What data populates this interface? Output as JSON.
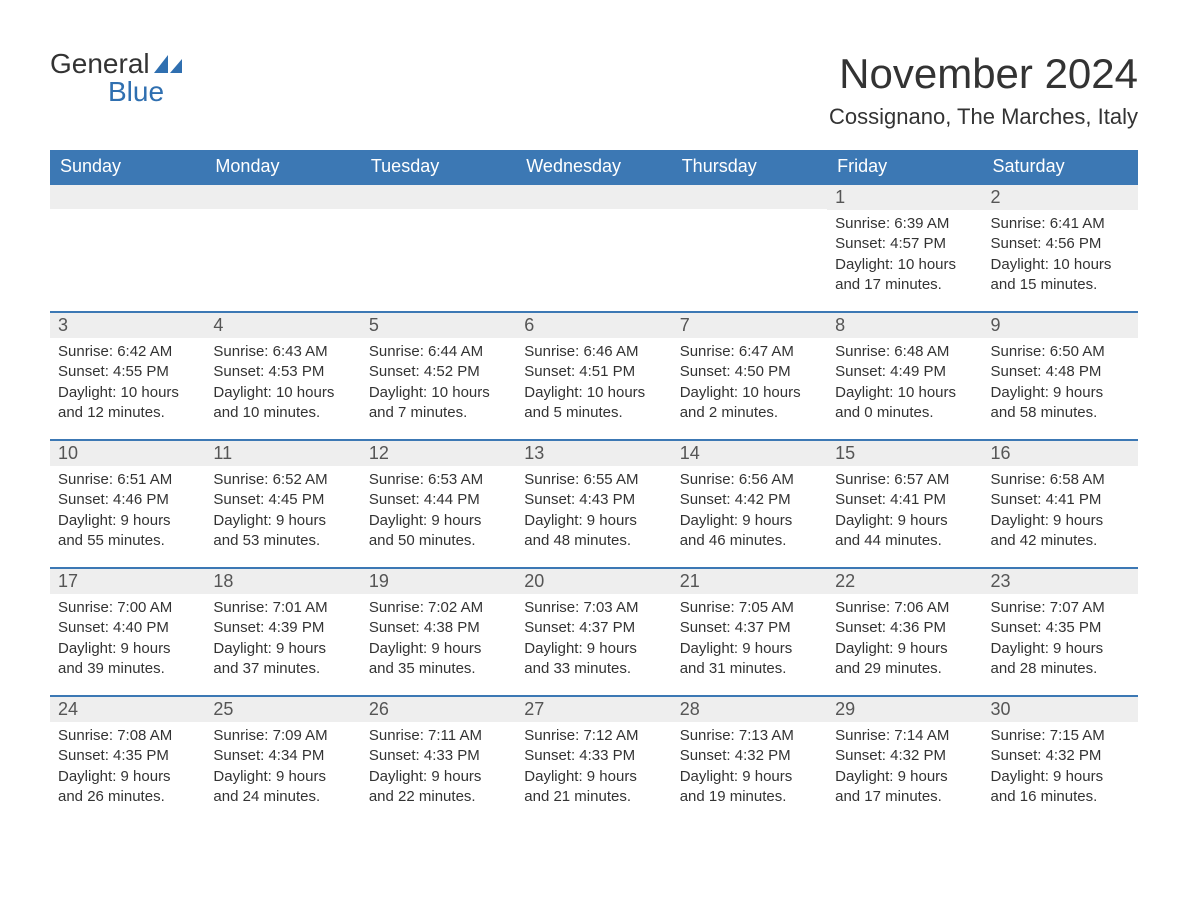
{
  "brand": {
    "line1": "General",
    "line2": "Blue",
    "accent_color": "#2f6fb0"
  },
  "title": "November 2024",
  "location": "Cossignano, The Marches, Italy",
  "colors": {
    "header_bg": "#3c78b4",
    "header_text": "#ffffff",
    "day_head_bg": "#eeeeee",
    "day_border": "#3c78b4",
    "body_text": "#333333",
    "page_bg": "#ffffff"
  },
  "weekdays": [
    "Sunday",
    "Monday",
    "Tuesday",
    "Wednesday",
    "Thursday",
    "Friday",
    "Saturday"
  ],
  "leading_blanks": 5,
  "days": [
    {
      "n": 1,
      "sunrise": "6:39 AM",
      "sunset": "4:57 PM",
      "daylight": "10 hours and 17 minutes."
    },
    {
      "n": 2,
      "sunrise": "6:41 AM",
      "sunset": "4:56 PM",
      "daylight": "10 hours and 15 minutes."
    },
    {
      "n": 3,
      "sunrise": "6:42 AM",
      "sunset": "4:55 PM",
      "daylight": "10 hours and 12 minutes."
    },
    {
      "n": 4,
      "sunrise": "6:43 AM",
      "sunset": "4:53 PM",
      "daylight": "10 hours and 10 minutes."
    },
    {
      "n": 5,
      "sunrise": "6:44 AM",
      "sunset": "4:52 PM",
      "daylight": "10 hours and 7 minutes."
    },
    {
      "n": 6,
      "sunrise": "6:46 AM",
      "sunset": "4:51 PM",
      "daylight": "10 hours and 5 minutes."
    },
    {
      "n": 7,
      "sunrise": "6:47 AM",
      "sunset": "4:50 PM",
      "daylight": "10 hours and 2 minutes."
    },
    {
      "n": 8,
      "sunrise": "6:48 AM",
      "sunset": "4:49 PM",
      "daylight": "10 hours and 0 minutes."
    },
    {
      "n": 9,
      "sunrise": "6:50 AM",
      "sunset": "4:48 PM",
      "daylight": "9 hours and 58 minutes."
    },
    {
      "n": 10,
      "sunrise": "6:51 AM",
      "sunset": "4:46 PM",
      "daylight": "9 hours and 55 minutes."
    },
    {
      "n": 11,
      "sunrise": "6:52 AM",
      "sunset": "4:45 PM",
      "daylight": "9 hours and 53 minutes."
    },
    {
      "n": 12,
      "sunrise": "6:53 AM",
      "sunset": "4:44 PM",
      "daylight": "9 hours and 50 minutes."
    },
    {
      "n": 13,
      "sunrise": "6:55 AM",
      "sunset": "4:43 PM",
      "daylight": "9 hours and 48 minutes."
    },
    {
      "n": 14,
      "sunrise": "6:56 AM",
      "sunset": "4:42 PM",
      "daylight": "9 hours and 46 minutes."
    },
    {
      "n": 15,
      "sunrise": "6:57 AM",
      "sunset": "4:41 PM",
      "daylight": "9 hours and 44 minutes."
    },
    {
      "n": 16,
      "sunrise": "6:58 AM",
      "sunset": "4:41 PM",
      "daylight": "9 hours and 42 minutes."
    },
    {
      "n": 17,
      "sunrise": "7:00 AM",
      "sunset": "4:40 PM",
      "daylight": "9 hours and 39 minutes."
    },
    {
      "n": 18,
      "sunrise": "7:01 AM",
      "sunset": "4:39 PM",
      "daylight": "9 hours and 37 minutes."
    },
    {
      "n": 19,
      "sunrise": "7:02 AM",
      "sunset": "4:38 PM",
      "daylight": "9 hours and 35 minutes."
    },
    {
      "n": 20,
      "sunrise": "7:03 AM",
      "sunset": "4:37 PM",
      "daylight": "9 hours and 33 minutes."
    },
    {
      "n": 21,
      "sunrise": "7:05 AM",
      "sunset": "4:37 PM",
      "daylight": "9 hours and 31 minutes."
    },
    {
      "n": 22,
      "sunrise": "7:06 AM",
      "sunset": "4:36 PM",
      "daylight": "9 hours and 29 minutes."
    },
    {
      "n": 23,
      "sunrise": "7:07 AM",
      "sunset": "4:35 PM",
      "daylight": "9 hours and 28 minutes."
    },
    {
      "n": 24,
      "sunrise": "7:08 AM",
      "sunset": "4:35 PM",
      "daylight": "9 hours and 26 minutes."
    },
    {
      "n": 25,
      "sunrise": "7:09 AM",
      "sunset": "4:34 PM",
      "daylight": "9 hours and 24 minutes."
    },
    {
      "n": 26,
      "sunrise": "7:11 AM",
      "sunset": "4:33 PM",
      "daylight": "9 hours and 22 minutes."
    },
    {
      "n": 27,
      "sunrise": "7:12 AM",
      "sunset": "4:33 PM",
      "daylight": "9 hours and 21 minutes."
    },
    {
      "n": 28,
      "sunrise": "7:13 AM",
      "sunset": "4:32 PM",
      "daylight": "9 hours and 19 minutes."
    },
    {
      "n": 29,
      "sunrise": "7:14 AM",
      "sunset": "4:32 PM",
      "daylight": "9 hours and 17 minutes."
    },
    {
      "n": 30,
      "sunrise": "7:15 AM",
      "sunset": "4:32 PM",
      "daylight": "9 hours and 16 minutes."
    }
  ],
  "labels": {
    "sunrise": "Sunrise",
    "sunset": "Sunset",
    "daylight": "Daylight"
  }
}
